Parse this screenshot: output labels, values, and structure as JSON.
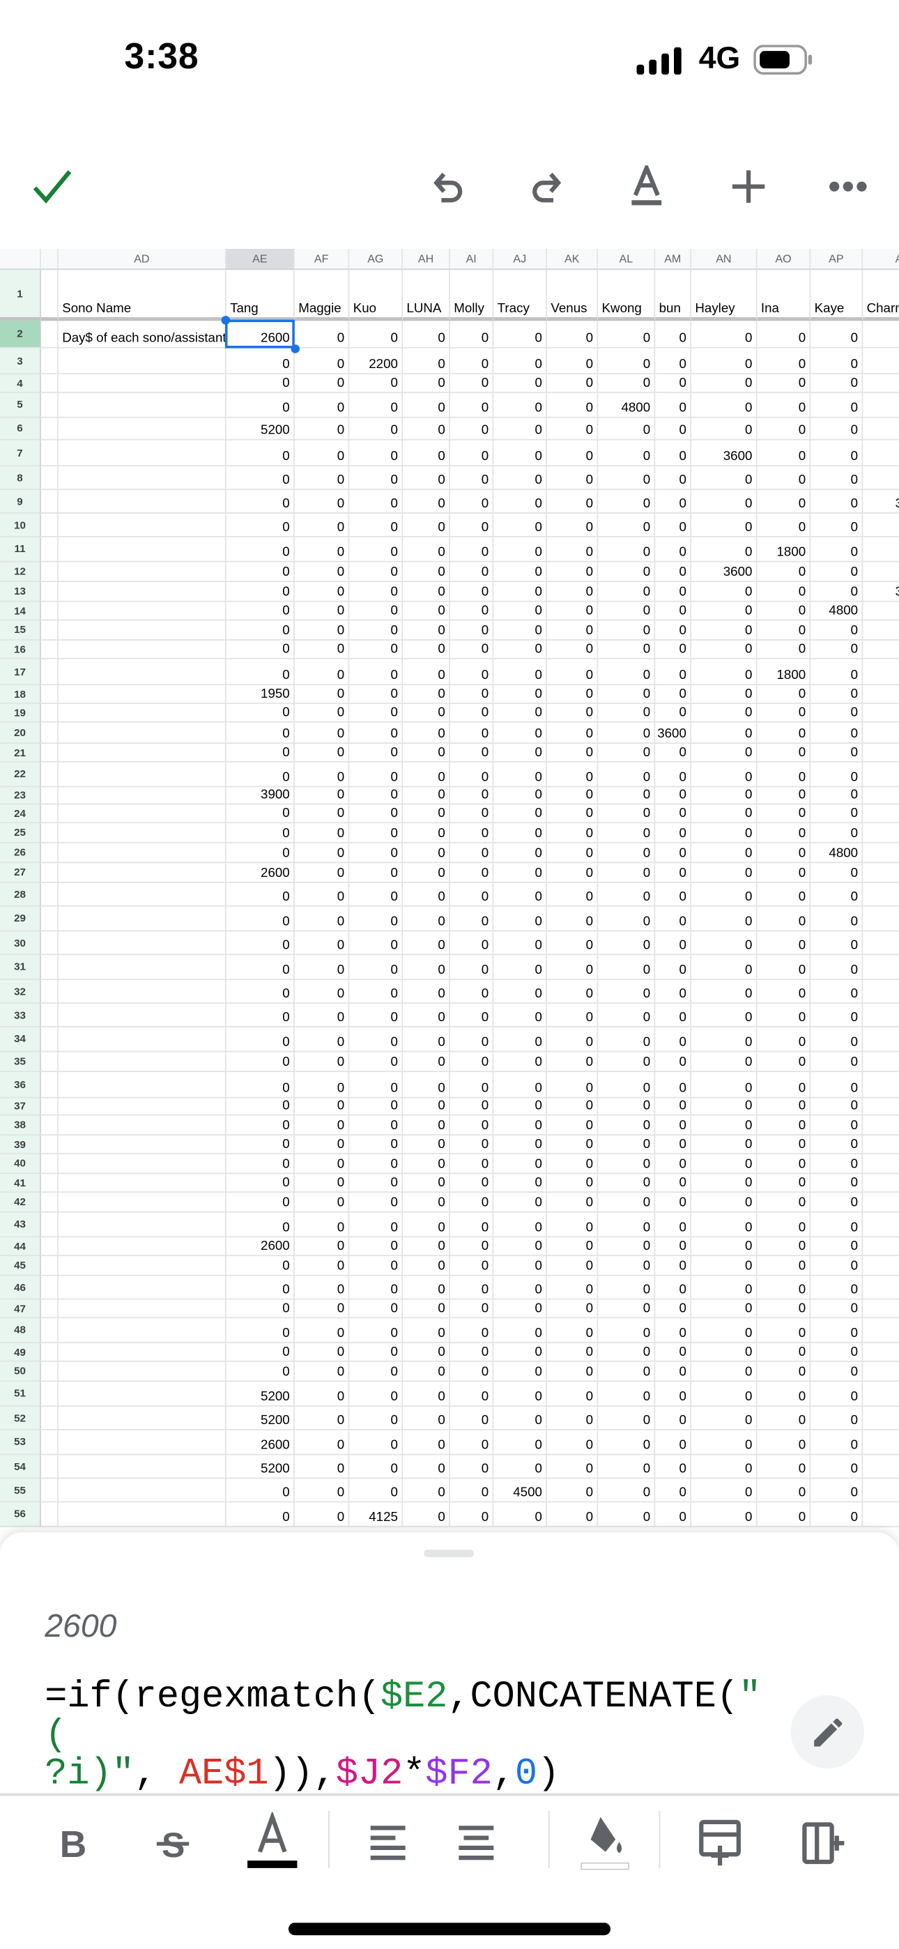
{
  "status_bar": {
    "time": "3:38",
    "network": "4G",
    "signal_level": "4 of 4 bars",
    "battery_level": 0.75
  },
  "toolbar": {
    "icons": [
      "checkmark-icon",
      "undo-icon",
      "redo-icon",
      "text-format-icon",
      "add-icon",
      "more-icon"
    ],
    "accent": "#188038"
  },
  "sheet": {
    "columns": [
      "AD",
      "AE",
      "AF",
      "AG",
      "AH",
      "AI",
      "AJ",
      "AK",
      "AL",
      "AM",
      "AN",
      "AO",
      "AP",
      "AQ"
    ],
    "selected_column": "AE",
    "selected_row": 2,
    "header_row": {
      "row": 1,
      "AD": "Sono Name",
      "names": [
        "Tang",
        "Maggie",
        "Kuo",
        "LUNA",
        "Molly",
        "Tracy",
        "Venus",
        "Kwong",
        "bun",
        "Hayley",
        "Ina",
        "Kaye",
        "Charm"
      ]
    },
    "row2_label": "Day$ of each sono/assistant",
    "partial_column_values": {
      "9": "3",
      "13": "3"
    },
    "rows": [
      {
        "n": 2,
        "v": [
          2600,
          0,
          0,
          0,
          0,
          0,
          0,
          0,
          0,
          0,
          0,
          0
        ]
      },
      {
        "n": 3,
        "v": [
          0,
          0,
          2200,
          0,
          0,
          0,
          0,
          0,
          0,
          0,
          0,
          0
        ]
      },
      {
        "n": 4,
        "v": [
          0,
          0,
          0,
          0,
          0,
          0,
          0,
          0,
          0,
          0,
          0,
          0
        ]
      },
      {
        "n": 5,
        "v": [
          0,
          0,
          0,
          0,
          0,
          0,
          0,
          4800,
          0,
          0,
          0,
          0
        ]
      },
      {
        "n": 6,
        "v": [
          5200,
          0,
          0,
          0,
          0,
          0,
          0,
          0,
          0,
          0,
          0,
          0
        ]
      },
      {
        "n": 7,
        "v": [
          0,
          0,
          0,
          0,
          0,
          0,
          0,
          0,
          0,
          3600,
          0,
          0
        ]
      },
      {
        "n": 8,
        "v": [
          0,
          0,
          0,
          0,
          0,
          0,
          0,
          0,
          0,
          0,
          0,
          0
        ]
      },
      {
        "n": 9,
        "v": [
          0,
          0,
          0,
          0,
          0,
          0,
          0,
          0,
          0,
          0,
          0,
          0
        ]
      },
      {
        "n": 10,
        "v": [
          0,
          0,
          0,
          0,
          0,
          0,
          0,
          0,
          0,
          0,
          0,
          0
        ]
      },
      {
        "n": 11,
        "v": [
          0,
          0,
          0,
          0,
          0,
          0,
          0,
          0,
          0,
          0,
          1800,
          0
        ]
      },
      {
        "n": 12,
        "v": [
          0,
          0,
          0,
          0,
          0,
          0,
          0,
          0,
          0,
          3600,
          0,
          0
        ]
      },
      {
        "n": 13,
        "v": [
          0,
          0,
          0,
          0,
          0,
          0,
          0,
          0,
          0,
          0,
          0,
          0
        ]
      },
      {
        "n": 14,
        "v": [
          0,
          0,
          0,
          0,
          0,
          0,
          0,
          0,
          0,
          0,
          0,
          4800
        ]
      },
      {
        "n": 15,
        "v": [
          0,
          0,
          0,
          0,
          0,
          0,
          0,
          0,
          0,
          0,
          0,
          0
        ]
      },
      {
        "n": 16,
        "v": [
          0,
          0,
          0,
          0,
          0,
          0,
          0,
          0,
          0,
          0,
          0,
          0
        ]
      },
      {
        "n": 17,
        "v": [
          0,
          0,
          0,
          0,
          0,
          0,
          0,
          0,
          0,
          0,
          1800,
          0
        ]
      },
      {
        "n": 18,
        "v": [
          1950,
          0,
          0,
          0,
          0,
          0,
          0,
          0,
          0,
          0,
          0,
          0
        ]
      },
      {
        "n": 19,
        "v": [
          0,
          0,
          0,
          0,
          0,
          0,
          0,
          0,
          0,
          0,
          0,
          0
        ]
      },
      {
        "n": 20,
        "v": [
          0,
          0,
          0,
          0,
          0,
          0,
          0,
          0,
          3600,
          0,
          0,
          0
        ]
      },
      {
        "n": 21,
        "v": [
          0,
          0,
          0,
          0,
          0,
          0,
          0,
          0,
          0,
          0,
          0,
          0
        ]
      },
      {
        "n": 22,
        "v": [
          0,
          0,
          0,
          0,
          0,
          0,
          0,
          0,
          0,
          0,
          0,
          0
        ]
      },
      {
        "n": 23,
        "v": [
          3900,
          0,
          0,
          0,
          0,
          0,
          0,
          0,
          0,
          0,
          0,
          0
        ]
      },
      {
        "n": 24,
        "v": [
          0,
          0,
          0,
          0,
          0,
          0,
          0,
          0,
          0,
          0,
          0,
          0
        ]
      },
      {
        "n": 25,
        "v": [
          0,
          0,
          0,
          0,
          0,
          0,
          0,
          0,
          0,
          0,
          0,
          0
        ]
      },
      {
        "n": 26,
        "v": [
          0,
          0,
          0,
          0,
          0,
          0,
          0,
          0,
          0,
          0,
          0,
          4800
        ]
      },
      {
        "n": 27,
        "v": [
          2600,
          0,
          0,
          0,
          0,
          0,
          0,
          0,
          0,
          0,
          0,
          0
        ]
      },
      {
        "n": 28,
        "v": [
          0,
          0,
          0,
          0,
          0,
          0,
          0,
          0,
          0,
          0,
          0,
          0
        ]
      },
      {
        "n": 29,
        "v": [
          0,
          0,
          0,
          0,
          0,
          0,
          0,
          0,
          0,
          0,
          0,
          0
        ]
      },
      {
        "n": 30,
        "v": [
          0,
          0,
          0,
          0,
          0,
          0,
          0,
          0,
          0,
          0,
          0,
          0
        ]
      },
      {
        "n": 31,
        "v": [
          0,
          0,
          0,
          0,
          0,
          0,
          0,
          0,
          0,
          0,
          0,
          0
        ]
      },
      {
        "n": 32,
        "v": [
          0,
          0,
          0,
          0,
          0,
          0,
          0,
          0,
          0,
          0,
          0,
          0
        ]
      },
      {
        "n": 33,
        "v": [
          0,
          0,
          0,
          0,
          0,
          0,
          0,
          0,
          0,
          0,
          0,
          0
        ]
      },
      {
        "n": 34,
        "v": [
          0,
          0,
          0,
          0,
          0,
          0,
          0,
          0,
          0,
          0,
          0,
          0
        ]
      },
      {
        "n": 35,
        "v": [
          0,
          0,
          0,
          0,
          0,
          0,
          0,
          0,
          0,
          0,
          0,
          0
        ]
      },
      {
        "n": 36,
        "v": [
          0,
          0,
          0,
          0,
          0,
          0,
          0,
          0,
          0,
          0,
          0,
          0
        ]
      },
      {
        "n": 37,
        "v": [
          0,
          0,
          0,
          0,
          0,
          0,
          0,
          0,
          0,
          0,
          0,
          0
        ]
      },
      {
        "n": 38,
        "v": [
          0,
          0,
          0,
          0,
          0,
          0,
          0,
          0,
          0,
          0,
          0,
          0
        ]
      },
      {
        "n": 39,
        "v": [
          0,
          0,
          0,
          0,
          0,
          0,
          0,
          0,
          0,
          0,
          0,
          0
        ]
      },
      {
        "n": 40,
        "v": [
          0,
          0,
          0,
          0,
          0,
          0,
          0,
          0,
          0,
          0,
          0,
          0
        ]
      },
      {
        "n": 41,
        "v": [
          0,
          0,
          0,
          0,
          0,
          0,
          0,
          0,
          0,
          0,
          0,
          0
        ]
      },
      {
        "n": 42,
        "v": [
          0,
          0,
          0,
          0,
          0,
          0,
          0,
          0,
          0,
          0,
          0,
          0
        ]
      },
      {
        "n": 43,
        "v": [
          0,
          0,
          0,
          0,
          0,
          0,
          0,
          0,
          0,
          0,
          0,
          0
        ]
      },
      {
        "n": 44,
        "v": [
          2600,
          0,
          0,
          0,
          0,
          0,
          0,
          0,
          0,
          0,
          0,
          0
        ]
      },
      {
        "n": 45,
        "v": [
          0,
          0,
          0,
          0,
          0,
          0,
          0,
          0,
          0,
          0,
          0,
          0
        ]
      },
      {
        "n": 46,
        "v": [
          0,
          0,
          0,
          0,
          0,
          0,
          0,
          0,
          0,
          0,
          0,
          0
        ]
      },
      {
        "n": 47,
        "v": [
          0,
          0,
          0,
          0,
          0,
          0,
          0,
          0,
          0,
          0,
          0,
          0
        ]
      },
      {
        "n": 48,
        "v": [
          0,
          0,
          0,
          0,
          0,
          0,
          0,
          0,
          0,
          0,
          0,
          0
        ]
      },
      {
        "n": 49,
        "v": [
          0,
          0,
          0,
          0,
          0,
          0,
          0,
          0,
          0,
          0,
          0,
          0
        ]
      },
      {
        "n": 50,
        "v": [
          0,
          0,
          0,
          0,
          0,
          0,
          0,
          0,
          0,
          0,
          0,
          0
        ]
      },
      {
        "n": 51,
        "v": [
          5200,
          0,
          0,
          0,
          0,
          0,
          0,
          0,
          0,
          0,
          0,
          0
        ]
      },
      {
        "n": 52,
        "v": [
          5200,
          0,
          0,
          0,
          0,
          0,
          0,
          0,
          0,
          0,
          0,
          0
        ]
      },
      {
        "n": 53,
        "v": [
          2600,
          0,
          0,
          0,
          0,
          0,
          0,
          0,
          0,
          0,
          0,
          0
        ]
      },
      {
        "n": 54,
        "v": [
          5200,
          0,
          0,
          0,
          0,
          0,
          0,
          0,
          0,
          0,
          0,
          0
        ]
      },
      {
        "n": 55,
        "v": [
          0,
          0,
          0,
          0,
          0,
          4500,
          0,
          0,
          0,
          0,
          0,
          0
        ]
      },
      {
        "n": 56,
        "v": [
          0,
          0,
          4125,
          0,
          0,
          0,
          0,
          0,
          0,
          0,
          0,
          0
        ]
      }
    ]
  },
  "cell_editor": {
    "value": "2600",
    "formula_tokens": [
      {
        "t": "=if(regexmatch(",
        "c": "#000000"
      },
      {
        "t": "$E2",
        "c": "#1e8e3e"
      },
      {
        "t": ",CONCATENATE(",
        "c": "#000000"
      },
      {
        "t": "\"(\n?i)\"",
        "c": "#188038"
      },
      {
        "t": ", ",
        "c": "#000000"
      },
      {
        "t": "AE$1",
        "c": "#d93025"
      },
      {
        "t": ")),",
        "c": "#000000"
      },
      {
        "t": "$J2",
        "c": "#d01884"
      },
      {
        "t": "*",
        "c": "#000000"
      },
      {
        "t": "$F2",
        "c": "#9334e6"
      },
      {
        "t": ",",
        "c": "#000000"
      },
      {
        "t": "0",
        "c": "#1a73e8"
      },
      {
        "t": ")",
        "c": "#000000"
      }
    ],
    "edit_icon": "pencil-icon"
  },
  "format_bar": {
    "icons": [
      "bold-icon",
      "strikethrough-icon",
      "text-color-icon",
      "align-left-icon",
      "align-center-icon",
      "fill-color-icon",
      "insert-row-icon",
      "insert-column-icon"
    ],
    "text_color": "#000000",
    "fill_color": "#ffffff"
  }
}
